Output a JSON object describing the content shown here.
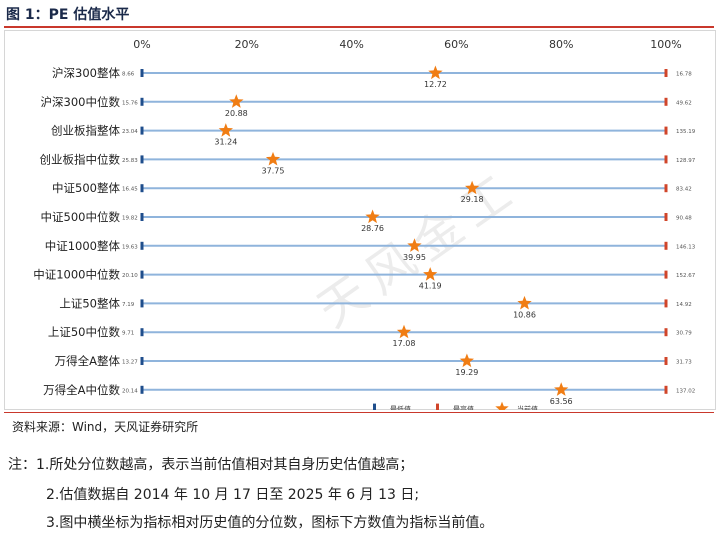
{
  "figure": {
    "title": "图 1：PE 估值水平",
    "source": "资料来源：Wind，天风证券研究所",
    "watermark": "天风金工",
    "notes": [
      "注：1.所处分位数越高，表示当前估值相对其自身历史估值越高；",
      "2.估值数据自 2014 年 10 月 17 日至 2025 年 6 月 13 日;",
      "3.图中横坐标为指标相对历史值的分位数，图标下方数值为指标当前值。"
    ]
  },
  "colors": {
    "track": "#8fb4dc",
    "min_marker": "#1f4e8c",
    "max_marker": "#d0452a",
    "star": "#f07d14",
    "title_rule": "#c9382c"
  },
  "chart_data": {
    "type": "dot-range",
    "xlim": [
      0,
      100
    ],
    "x_ticks": [
      "0%",
      "20%",
      "40%",
      "60%",
      "80%",
      "100%"
    ],
    "grid": false,
    "legend": {
      "position": "bottom-right",
      "entries": [
        "最低值",
        "最高值",
        "当前值"
      ]
    },
    "categories": [
      {
        "name": "沪深300整体",
        "min": "8.66",
        "max": "16.78",
        "current": "12.72",
        "percentile": 56
      },
      {
        "name": "沪深300中位数",
        "min": "15.76",
        "max": "49.62",
        "current": "20.88",
        "percentile": 18
      },
      {
        "name": "创业板指整体",
        "min": "23.04",
        "max": "135.19",
        "current": "31.24",
        "percentile": 16
      },
      {
        "name": "创业板指中位数",
        "min": "25.83",
        "max": "128.97",
        "current": "37.75",
        "percentile": 25
      },
      {
        "name": "中证500整体",
        "min": "16.45",
        "max": "83.42",
        "current": "29.18",
        "percentile": 63
      },
      {
        "name": "中证500中位数",
        "min": "19.82",
        "max": "90.48",
        "current": "28.76",
        "percentile": 44
      },
      {
        "name": "中证1000整体",
        "min": "19.63",
        "max": "146.13",
        "current": "39.95",
        "percentile": 52
      },
      {
        "name": "中证1000中位数",
        "min": "20.10",
        "max": "152.67",
        "current": "41.19",
        "percentile": 55
      },
      {
        "name": "上证50整体",
        "min": "7.19",
        "max": "14.92",
        "current": "10.86",
        "percentile": 73
      },
      {
        "name": "上证50中位数",
        "min": "9.71",
        "max": "30.79",
        "current": "17.08",
        "percentile": 50
      },
      {
        "name": "万得全A整体",
        "min": "13.27",
        "max": "31.73",
        "current": "19.29",
        "percentile": 62
      },
      {
        "name": "万得全A中位数",
        "min": "20.14",
        "max": "137.02",
        "current": "63.56",
        "percentile": 80
      }
    ]
  }
}
